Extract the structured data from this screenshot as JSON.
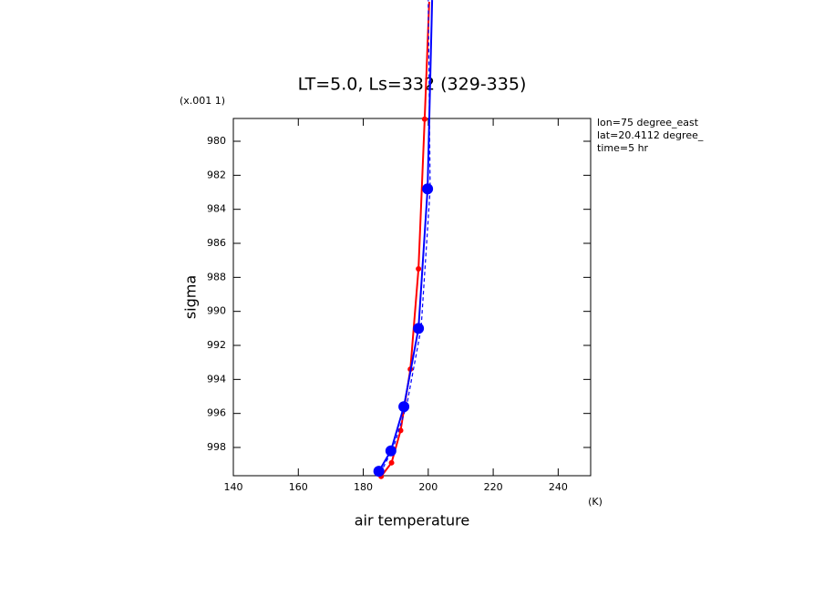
{
  "chart_data": {
    "type": "line",
    "title": "LT=5.0, Ls=332 (329-335)",
    "x_label": "air temperature",
    "y_label": "sigma",
    "y_unit": "(x.001 1)",
    "x_unit": "(K)",
    "annotations": [
      "lon=75 degree_east",
      "lat=20.4112 degree_",
      "time=5 hr"
    ],
    "xlim": [
      140,
      250
    ],
    "ylim": [
      999.66,
      978.66
    ],
    "xticks": [
      140,
      160,
      180,
      200,
      220,
      240
    ],
    "yticks": [
      980,
      982,
      984,
      986,
      988,
      990,
      992,
      994,
      996,
      998
    ],
    "series": [
      {
        "color": "#ff0000",
        "marker": "small",
        "line_style": "solid",
        "x": [
          185.5,
          188.7,
          191.5,
          194.5,
          197.0,
          198.9,
          200.3
        ],
        "y": [
          999.7,
          998.9,
          997.0,
          993.4,
          987.5,
          978.7,
          971.8
        ]
      },
      {
        "color": "#0000ff",
        "marker": "large",
        "line_style": "solid",
        "x": [
          184.8,
          188.5,
          192.5,
          197.0,
          199.8,
          201.2
        ],
        "y": [
          999.4,
          998.2,
          995.6,
          991.0,
          982.8,
          971.7
        ]
      },
      {
        "color": "#0000ff",
        "marker": "none",
        "line_style": "dashed",
        "x": [
          185.3,
          189.3,
          193.4,
          197.8,
          200.6,
          200.0
        ],
        "y": [
          999.5,
          998.0,
          995.5,
          991.0,
          982.8,
          971.7
        ]
      }
    ]
  }
}
